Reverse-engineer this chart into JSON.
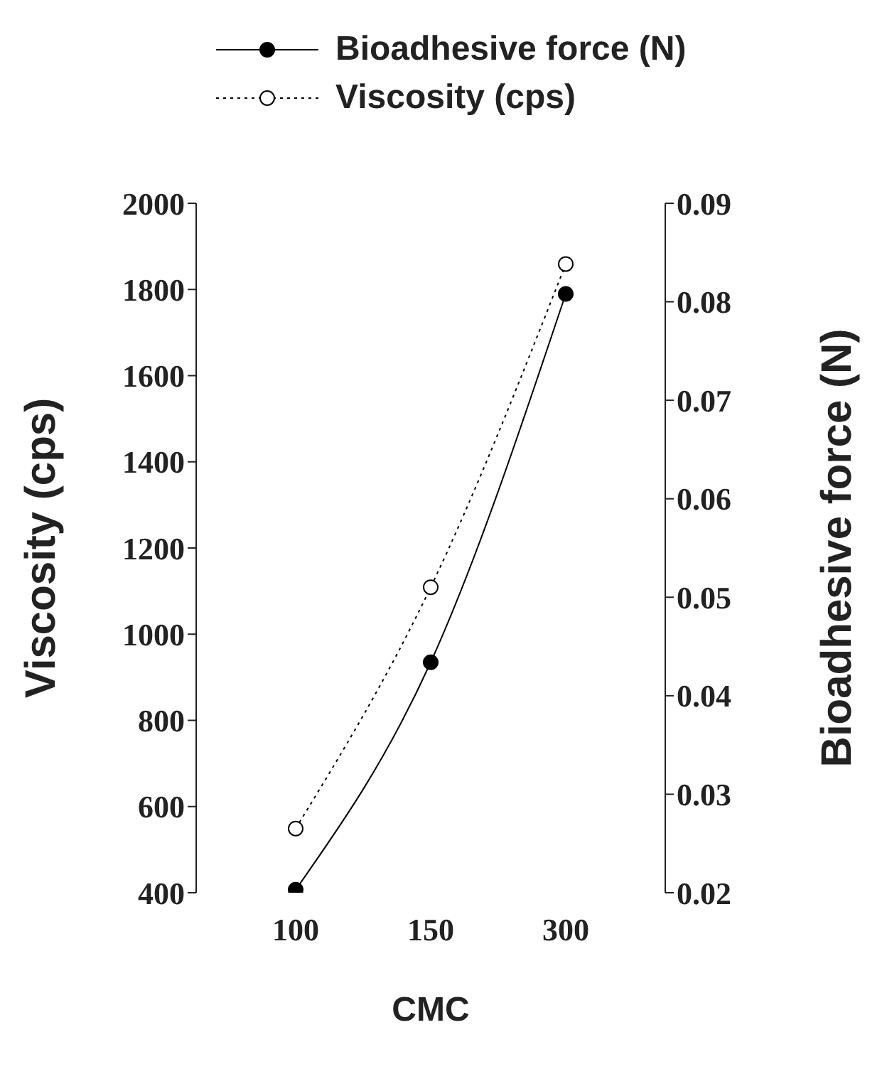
{
  "chart_data": {
    "type": "line",
    "xlabel": "CMC",
    "ylabel": "Viscosity (cps)",
    "y2label": "Bioadhesive force (N)",
    "categories": [
      "100",
      "150",
      "300"
    ],
    "series": [
      {
        "name": "Bioadhesive force (N)",
        "color": "#000000",
        "values": [
          0.0203,
          0.0434,
          0.0808
        ],
        "axis": "y2",
        "marker": "circle",
        "line_style": "solid"
      },
      {
        "name": "Viscosity (cps)",
        "color": "#000000",
        "values": [
          549,
          1109,
          1859
        ],
        "marker": "circle",
        "line_style": "dotted"
      }
    ],
    "ylim": [
      400,
      2000
    ],
    "yticks": [
      400,
      600,
      800,
      1000,
      1200,
      1400,
      1600,
      1800,
      2000
    ],
    "y2lim": [
      0.02,
      0.09
    ],
    "y2ticks": [
      0.02,
      0.03,
      0.04,
      0.05,
      0.06,
      0.07,
      0.08,
      0.09
    ],
    "legend": "top",
    "grid": false
  }
}
